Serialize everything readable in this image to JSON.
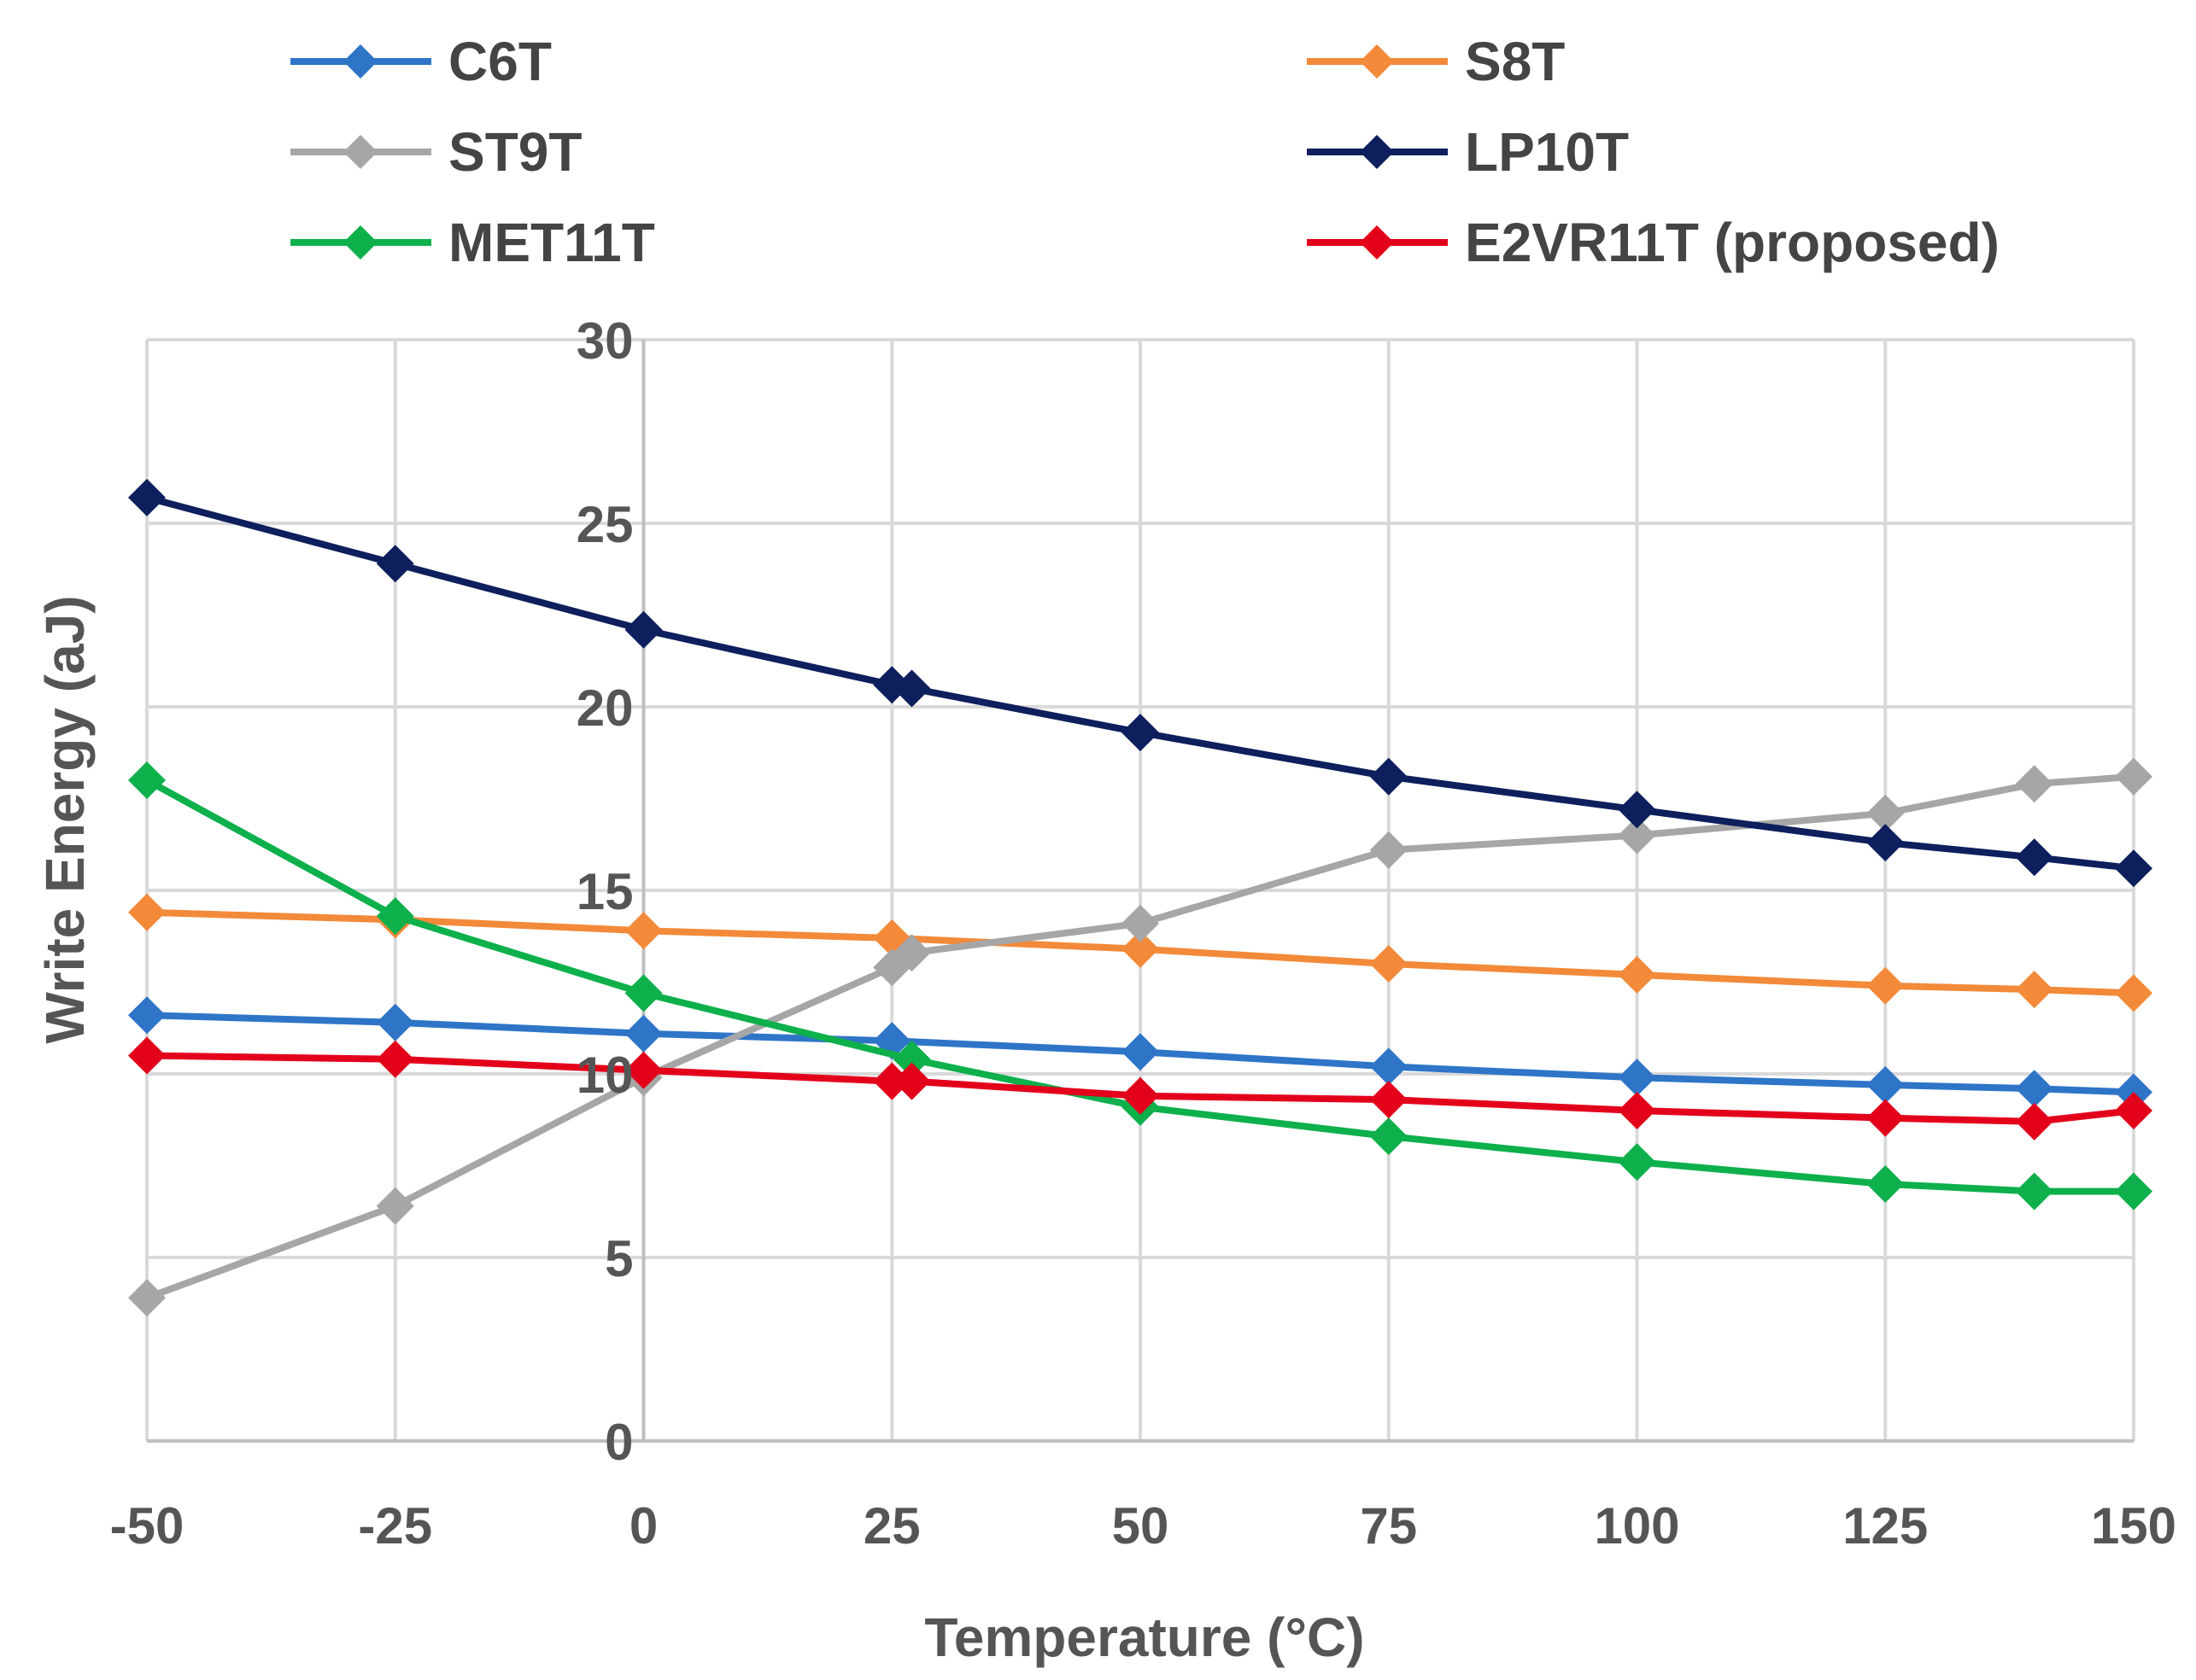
{
  "chart_data": {
    "type": "line",
    "title": "",
    "xlabel": "Temperature (°C)",
    "ylabel": "Write Energy (aJ)",
    "xlim": [
      -50,
      150
    ],
    "ylim": [
      0,
      30
    ],
    "x_ticks": [
      -50,
      -25,
      0,
      25,
      50,
      75,
      100,
      125,
      150
    ],
    "y_ticks": [
      0,
      5,
      10,
      15,
      20,
      25,
      30
    ],
    "grid": true,
    "legend_position": "top",
    "series": [
      {
        "name": "C6T",
        "color": "#2E75C8",
        "x": [
          -50,
          -25,
          0,
          25,
          50,
          75,
          100,
          125,
          140,
          150
        ],
        "y": [
          11.6,
          11.4,
          11.1,
          10.9,
          10.6,
          10.2,
          9.9,
          9.7,
          9.6,
          9.5
        ]
      },
      {
        "name": "S8T",
        "color": "#F28A3A",
        "x": [
          -50,
          -25,
          0,
          25,
          50,
          75,
          100,
          125,
          140,
          150
        ],
        "y": [
          14.4,
          14.2,
          13.9,
          13.7,
          13.4,
          13.0,
          12.7,
          12.4,
          12.3,
          12.2
        ]
      },
      {
        "name": "ST9T",
        "color": "#A6A6A6",
        "x": [
          -50,
          -25,
          0,
          25,
          27,
          50,
          75,
          100,
          125,
          140,
          150
        ],
        "y": [
          3.9,
          6.4,
          9.9,
          12.9,
          13.3,
          14.1,
          16.1,
          16.5,
          17.1,
          17.9,
          18.1
        ]
      },
      {
        "name": "LP10T",
        "color": "#0D1F5C",
        "x": [
          -50,
          -25,
          0,
          25,
          27,
          50,
          75,
          100,
          125,
          140,
          150
        ],
        "y": [
          25.7,
          23.9,
          22.1,
          20.6,
          20.5,
          19.3,
          18.1,
          17.2,
          16.3,
          15.9,
          15.6
        ]
      },
      {
        "name": "MET11T",
        "color": "#0DB04B",
        "x": [
          -50,
          -25,
          0,
          27,
          50,
          75,
          100,
          125,
          140,
          150
        ],
        "y": [
          18.0,
          14.3,
          12.2,
          10.4,
          9.1,
          8.3,
          7.6,
          7.0,
          6.8,
          6.8
        ]
      },
      {
        "name": "E2VR11T (proposed)",
        "color": "#E3001B",
        "x": [
          -50,
          -25,
          0,
          25,
          27,
          50,
          75,
          100,
          125,
          140,
          150
        ],
        "y": [
          10.5,
          10.4,
          10.1,
          9.8,
          9.8,
          9.4,
          9.3,
          9.0,
          8.8,
          8.7,
          9.0
        ]
      }
    ]
  }
}
